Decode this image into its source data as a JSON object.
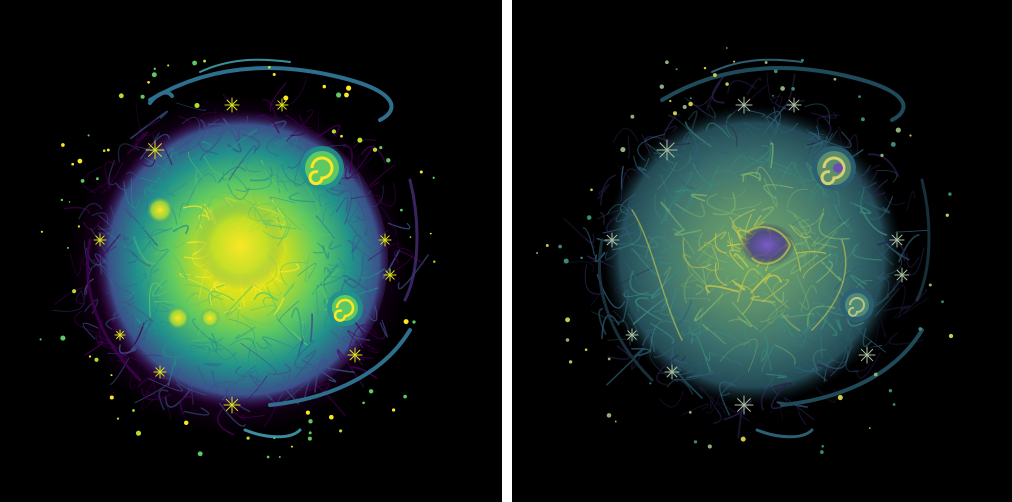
{
  "figure": {
    "left_panel": {
      "colormap": "viridis",
      "background": "#000000",
      "palette": [
        "#440154",
        "#3b528b",
        "#21918c",
        "#5ec962",
        "#fde725"
      ]
    },
    "right_panel": {
      "colormap": "viridis-muted",
      "background": "#000000",
      "palette": [
        "#2a1f4d",
        "#2c5f73",
        "#3a8a7a",
        "#7bb06a",
        "#c9c94a"
      ],
      "accent": "#6a4fb0"
    },
    "divider_color": "#ffffff"
  }
}
